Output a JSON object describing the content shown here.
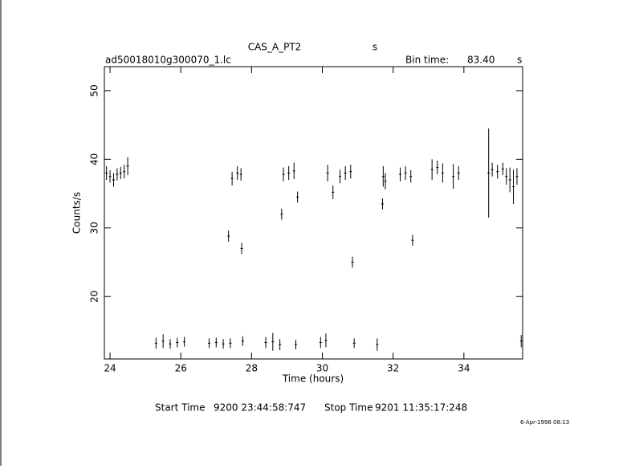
{
  "chart_data": {
    "type": "scatter",
    "title": "CAS_A_PT2",
    "title_unit": "s",
    "file_name": "ad50018010g300070_1.lc",
    "bin_time_label": "Bin time:",
    "bin_time": "83.40",
    "bin_time_unit": "s",
    "x_label": "Time (hours)",
    "y_label": "Counts/s",
    "start_time_label": "Start Time",
    "start_time": "9200 23:44:58:747",
    "stop_time_label": "Stop Time",
    "stop_time": "9201 11:35:17:248",
    "plot_date": "6-Apr-1998 08:13",
    "color": "#000000",
    "xlim": [
      23.84,
      35.66
    ],
    "ylim": [
      10.9,
      53.5
    ],
    "xticks": [
      24,
      26,
      28,
      30,
      32,
      34
    ],
    "yticks": [
      20,
      30,
      40,
      50
    ],
    "x": [
      23.9,
      24.0,
      24.1,
      24.2,
      24.3,
      24.4,
      24.5,
      25.3,
      25.5,
      25.7,
      25.9,
      26.1,
      26.8,
      27.0,
      27.2,
      27.35,
      27.4,
      27.45,
      27.6,
      27.7,
      27.72,
      27.75,
      28.4,
      28.6,
      28.8,
      28.85,
      28.9,
      29.05,
      29.2,
      29.25,
      29.3,
      29.95,
      30.1,
      30.15,
      30.3,
      30.5,
      30.65,
      30.8,
      30.85,
      30.9,
      31.55,
      31.7,
      31.72,
      31.78,
      32.2,
      32.35,
      32.5,
      32.55,
      33.1,
      33.25,
      33.4,
      33.7,
      33.85,
      34.7,
      34.8,
      34.95,
      35.1,
      35.2,
      35.3,
      35.4,
      35.5,
      35.62
    ],
    "values": [
      38,
      37.5,
      37,
      37.8,
      38,
      38.2,
      39,
      13.2,
      13.5,
      13.1,
      13.3,
      13.4,
      13.2,
      13.3,
      13.1,
      28.8,
      13.2,
      37.2,
      38,
      37.8,
      27,
      13.5,
      13.3,
      13.4,
      13,
      32,
      37.8,
      38,
      38.3,
      13,
      34.5,
      13.3,
      13.6,
      38,
      35.2,
      37.5,
      38,
      38.2,
      25,
      13.2,
      13,
      33.5,
      37.5,
      36.8,
      37.8,
      38,
      37.5,
      28.2,
      38.5,
      38.8,
      38,
      37.5,
      38,
      38,
      38.5,
      38.2,
      38.6,
      37.5,
      37,
      36,
      37.5,
      13.5
    ],
    "errors": [
      1,
      0.9,
      1,
      0.9,
      0.9,
      1,
      1.3,
      0.8,
      1,
      0.7,
      0.7,
      0.7,
      0.7,
      0.7,
      0.7,
      0.8,
      0.7,
      1,
      1,
      0.9,
      0.8,
      0.7,
      0.8,
      1.3,
      0.8,
      0.8,
      1,
      1,
      1.2,
      0.7,
      0.8,
      0.8,
      1,
      1.2,
      1,
      1,
      1,
      1,
      0.8,
      0.7,
      0.9,
      0.8,
      1.5,
      1.2,
      1,
      1,
      0.9,
      0.8,
      1.5,
      1,
      1.4,
      1.8,
      1,
      6.5,
      1,
      1,
      0.9,
      1.2,
      1.8,
      2.5,
      1.2,
      0.9
    ]
  }
}
